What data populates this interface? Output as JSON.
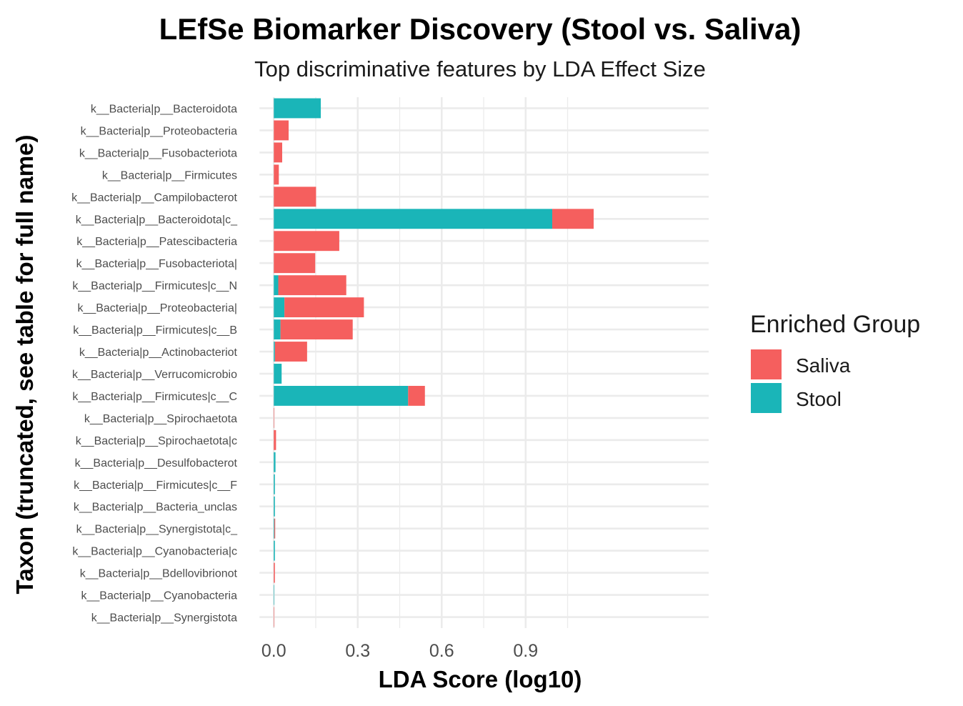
{
  "chart_data": {
    "type": "bar",
    "orientation": "horizontal",
    "stacked": true,
    "title": "LEfSe Biomarker Discovery (Stool vs. Saliva)",
    "subtitle": "Top discriminative features by LDA Effect Size",
    "xlabel": "LDA Score (log10)",
    "ylabel": "Taxon (truncated, see table for full name)",
    "xlim": [
      -0.09,
      1.6
    ],
    "xticks": [
      0.0,
      0.3,
      0.6,
      0.9
    ],
    "xtick_labels": [
      "0.0",
      "0.3",
      "0.6",
      "0.9"
    ],
    "grid": true,
    "legend": {
      "title": "Enriched Group",
      "placement": "right"
    },
    "categories": [
      "k__Bacteria|p__Bacteroidota",
      "k__Bacteria|p__Proteobacteria",
      "k__Bacteria|p__Fusobacteriota",
      "k__Bacteria|p__Firmicutes",
      "k__Bacteria|p__Campilobacterot",
      "k__Bacteria|p__Bacteroidota|c_",
      "k__Bacteria|p__Patescibacteria",
      "k__Bacteria|p__Fusobacteriota|",
      "k__Bacteria|p__Firmicutes|c__N",
      "k__Bacteria|p__Proteobacteria|",
      "k__Bacteria|p__Firmicutes|c__B",
      "k__Bacteria|p__Actinobacteriot",
      "k__Bacteria|p__Verrucomicrobio",
      "k__Bacteria|p__Firmicutes|c__C",
      "k__Bacteria|p__Spirochaetota",
      "k__Bacteria|p__Spirochaetota|c",
      "k__Bacteria|p__Desulfobacterot",
      "k__Bacteria|p__Firmicutes|c__F",
      "k__Bacteria|p__Bacteria_unclas",
      "k__Bacteria|p__Synergistota|c_",
      "k__Bacteria|p__Cyanobacteria|c",
      "k__Bacteria|p__Bdellovibrionot",
      "k__Bacteria|p__Cyanobacteria",
      "k__Bacteria|p__Synergistota"
    ],
    "series": [
      {
        "name": "Stool",
        "color": "#1AB5B8",
        "values": [
          0.168,
          0,
          0,
          0,
          0,
          0.995,
          0,
          0,
          0.016,
          0.038,
          0.024,
          0.004,
          0.028,
          0.48,
          0,
          0,
          0.006,
          0.004,
          0.004,
          0.002,
          0.004,
          0,
          0.001,
          0
        ]
      },
      {
        "name": "Saliva",
        "color": "#F55F5E",
        "values": [
          0,
          0.053,
          0.03,
          0.018,
          0.151,
          0.148,
          0.234,
          0.148,
          0.243,
          0.284,
          0.258,
          0.115,
          0,
          0.06,
          0.001,
          0.008,
          0,
          0,
          0,
          0.003,
          0,
          0.004,
          0,
          0.001
        ]
      }
    ]
  }
}
